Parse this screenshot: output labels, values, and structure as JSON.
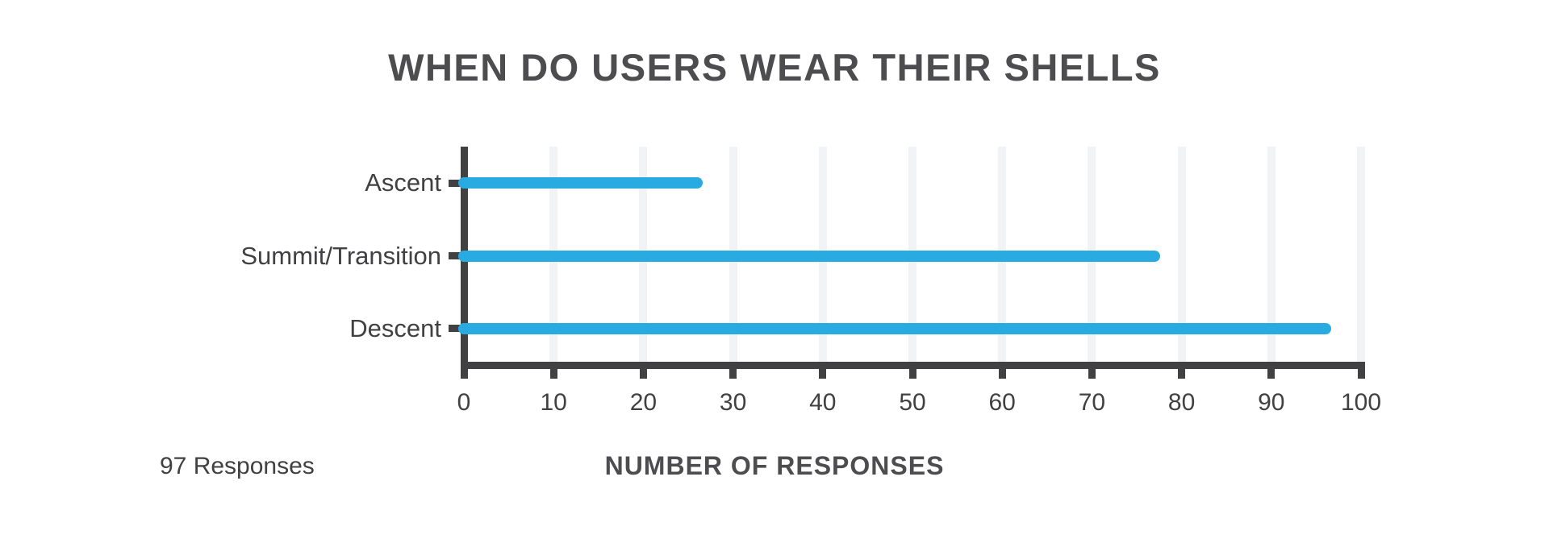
{
  "chart_data": {
    "type": "bar",
    "orientation": "horizontal",
    "title": "WHEN DO USERS WEAR THEIR SHELLS",
    "categories": [
      "Ascent",
      "Summit/Transition",
      "Descent"
    ],
    "values": [
      26,
      77,
      96
    ],
    "xlabel": "NUMBER OF RESPONSES",
    "ylabel": "",
    "xlim": [
      0,
      100
    ],
    "x_ticks": [
      0,
      10,
      20,
      30,
      40,
      50,
      60,
      70,
      80,
      90,
      100
    ],
    "grid": "vertical-light",
    "legend": "none"
  },
  "footer": {
    "note": "97 Responses"
  },
  "colors": {
    "bar": "#29ABE2",
    "axis": "#414042",
    "grid": "#F2F3F4",
    "title_text": "#4D4D4F",
    "label_text": "#414042",
    "background": "#FFFFFF"
  }
}
